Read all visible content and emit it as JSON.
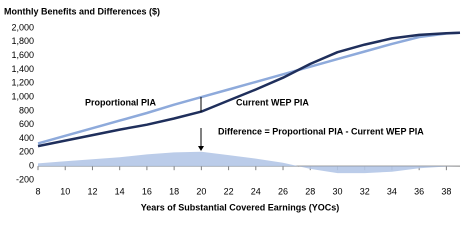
{
  "chart_data": {
    "type": "line",
    "title": "Monthly Benefits and Differences ($)",
    "xlabel": "Years of Substantial Covered Earnings (YOCs)",
    "x": [
      8,
      10,
      12,
      14,
      16,
      18,
      20,
      22,
      24,
      26,
      28,
      30,
      32,
      34,
      36,
      38,
      39
    ],
    "series": [
      {
        "name": "Difference",
        "type": "area",
        "color": "#b4c7e7",
        "values": [
          40,
          70,
          100,
          130,
          170,
          200,
          210,
          160,
          110,
          50,
          -40,
          -100,
          -100,
          -80,
          -30,
          -5,
          0
        ]
      },
      {
        "name": "Proportional PIA",
        "type": "line",
        "color": "#8eaadb",
        "values": [
          330,
          440,
          550,
          660,
          770,
          890,
          1000,
          1110,
          1220,
          1330,
          1440,
          1550,
          1660,
          1770,
          1870,
          1920,
          1930
        ]
      },
      {
        "name": "Current WEP PIA",
        "type": "line",
        "color": "#1f2f5c",
        "values": [
          290,
          370,
          450,
          530,
          600,
          690,
          790,
          950,
          1110,
          1280,
          1480,
          1650,
          1760,
          1850,
          1900,
          1925,
          1930
        ]
      }
    ],
    "annotations": [
      "Proportional PIA",
      "Current WEP PIA",
      "Difference = Proportional PIA - Current WEP PIA"
    ],
    "xlim": [
      8,
      39
    ],
    "xticks": [
      8,
      10,
      12,
      14,
      16,
      18,
      20,
      22,
      24,
      26,
      28,
      30,
      32,
      34,
      36,
      38
    ],
    "ylim": [
      -200,
      2000
    ],
    "yticks": [
      -200,
      0,
      200,
      400,
      600,
      800,
      {
        "value": 1000,
        "label": "1,000"
      },
      {
        "value": 1200,
        "label": "1,200"
      },
      {
        "value": 1400,
        "label": "1,400"
      },
      {
        "value": 1600,
        "label": "1,600"
      },
      {
        "value": 1800,
        "label": "1,800"
      },
      {
        "value": 2000,
        "label": "2,000"
      }
    ],
    "grid": false
  }
}
